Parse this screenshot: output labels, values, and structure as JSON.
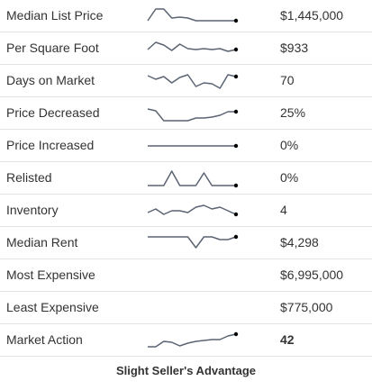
{
  "rows": [
    {
      "label": "Median List Price",
      "value": "$1,445,000",
      "bold": false,
      "spark": [
        0.25,
        0.9,
        0.9,
        0.4,
        0.45,
        0.4,
        0.25,
        0.25,
        0.25,
        0.25,
        0.25,
        0.25
      ]
    },
    {
      "label": "Per Square Foot",
      "value": "$933",
      "bold": false,
      "spark": [
        0.45,
        0.85,
        0.7,
        0.4,
        0.75,
        0.5,
        0.45,
        0.5,
        0.45,
        0.5,
        0.35,
        0.45
      ]
    },
    {
      "label": "Days on Market",
      "value": "70",
      "bold": false,
      "spark": [
        0.8,
        0.6,
        0.75,
        0.4,
        0.7,
        0.85,
        0.2,
        0.4,
        0.35,
        0.1,
        0.85,
        0.75
      ]
    },
    {
      "label": "Price Decreased",
      "value": "25%",
      "bold": false,
      "spark": [
        0.75,
        0.65,
        0.1,
        0.1,
        0.1,
        0.1,
        0.25,
        0.25,
        0.3,
        0.4,
        0.6,
        0.6
      ]
    },
    {
      "label": "Price Increased",
      "value": "0%",
      "bold": false,
      "spark": [
        0.5,
        0.5,
        0.5,
        0.5,
        0.5,
        0.5,
        0.5,
        0.5,
        0.5,
        0.5,
        0.5,
        0.5
      ]
    },
    {
      "label": "Relisted",
      "value": "0%",
      "bold": false,
      "spark": [
        0.1,
        0.1,
        0.1,
        0.9,
        0.1,
        0.1,
        0.1,
        0.8,
        0.1,
        0.1,
        0.1,
        0.1
      ]
    },
    {
      "label": "Inventory",
      "value": "4",
      "bold": false,
      "spark": [
        0.4,
        0.6,
        0.3,
        0.5,
        0.5,
        0.4,
        0.7,
        0.8,
        0.6,
        0.7,
        0.5,
        0.3
      ]
    },
    {
      "label": "Median Rent",
      "value": "$4,298",
      "bold": false,
      "spark": [
        0.85,
        0.85,
        0.85,
        0.85,
        0.85,
        0.85,
        0.25,
        0.85,
        0.85,
        0.7,
        0.7,
        0.85
      ]
    },
    {
      "label": "Most Expensive",
      "value": "$6,995,000",
      "bold": false,
      "spark": null
    },
    {
      "label": "Least Expensive",
      "value": "$775,000",
      "bold": false,
      "spark": null
    },
    {
      "label": "Market Action",
      "value": "42",
      "bold": true,
      "spark": [
        0.15,
        0.15,
        0.45,
        0.4,
        0.2,
        0.35,
        0.45,
        0.5,
        0.55,
        0.55,
        0.75,
        0.85
      ]
    }
  ],
  "footer": {
    "note": "Slight Seller's Advantage"
  },
  "colors": {
    "spark_line": "#5a6472",
    "spark_dot": "#000000",
    "text": "#333333",
    "divider": "#e3e3e3"
  }
}
